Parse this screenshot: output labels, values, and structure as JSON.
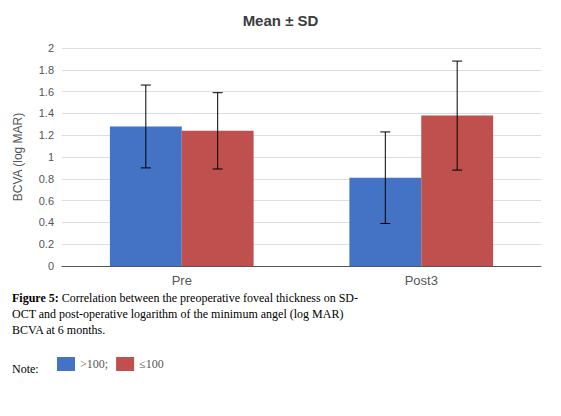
{
  "chart_data": {
    "type": "bar",
    "title": "Mean ± SD",
    "ylabel": "BCVA (log MAR)",
    "categories": [
      "Pre",
      "Post3"
    ],
    "series": [
      {
        "name": ">100;",
        "color": "#4472C4",
        "values": [
          1.28,
          0.81
        ],
        "errors": [
          0.38,
          0.42
        ]
      },
      {
        "name": "≤100",
        "color": "#C0504D",
        "values": [
          1.24,
          1.38
        ],
        "errors": [
          0.35,
          0.5
        ]
      }
    ],
    "ylim": [
      0,
      2.0
    ],
    "yticks": [
      0,
      0.2,
      0.4,
      0.6,
      0.8,
      1,
      1.2,
      1.4,
      1.6,
      1.8,
      2
    ],
    "grid": true,
    "legend": "bottom",
    "caption_bold": "Figure 5:",
    "caption": " Correlation between the preoperative foveal thickness on SD-\nOCT and post-operative logarithm of the minimum angel (log MAR)\nBCVA at 6 months.",
    "note": "Note:"
  }
}
